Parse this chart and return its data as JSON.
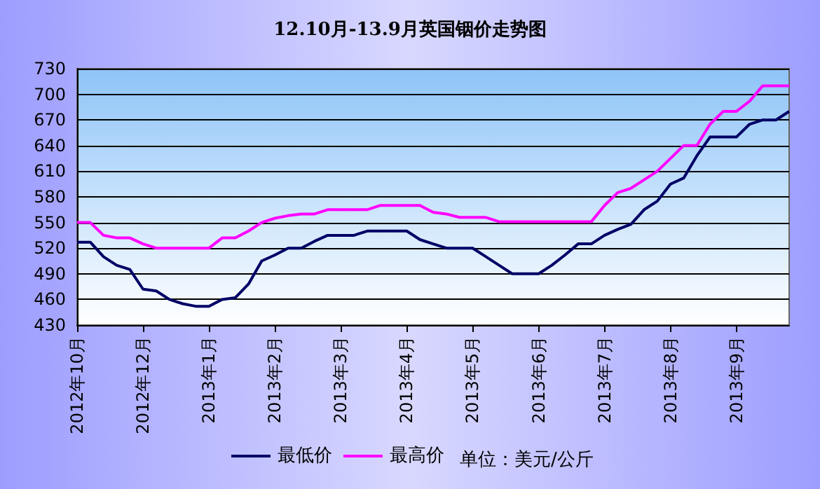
{
  "chart_data": {
    "type": "line",
    "title": "12.10月-13.9月英国铟价走势图",
    "categories": [
      "2012年10月",
      null,
      null,
      null,
      null,
      "2012年12月",
      null,
      null,
      null,
      null,
      "2013年1月",
      null,
      null,
      null,
      null,
      "2013年2月",
      null,
      null,
      null,
      null,
      "2013年3月",
      null,
      null,
      null,
      null,
      "2013年4月",
      null,
      null,
      null,
      null,
      "2013年5月",
      null,
      null,
      null,
      null,
      "2013年6月",
      null,
      null,
      null,
      null,
      "2013年7月",
      null,
      null,
      null,
      null,
      "2013年8月",
      null,
      null,
      null,
      null,
      "2013年9月",
      null,
      null,
      null,
      null
    ],
    "series": [
      {
        "name": "最低价",
        "color": "#000066",
        "values": [
          527,
          527,
          510,
          500,
          495,
          472,
          470,
          460,
          455,
          452,
          452,
          460,
          462,
          478,
          505,
          512,
          520,
          520,
          528,
          535,
          535,
          535,
          540,
          540,
          540,
          540,
          530,
          525,
          520,
          520,
          520,
          510,
          500,
          490,
          490,
          490,
          500,
          512,
          525,
          525,
          535,
          542,
          548,
          565,
          575,
          595,
          602,
          628,
          650,
          650,
          650,
          665,
          670,
          670,
          680
        ]
      },
      {
        "name": "最高价",
        "color": "#ff00ff",
        "values": [
          550,
          550,
          535,
          532,
          532,
          525,
          520,
          520,
          520,
          520,
          520,
          532,
          532,
          540,
          550,
          555,
          558,
          560,
          560,
          565,
          565,
          565,
          565,
          570,
          570,
          570,
          570,
          562,
          560,
          556,
          556,
          556,
          551,
          551,
          551,
          551,
          551,
          551,
          551,
          551,
          570,
          585,
          590,
          600,
          610,
          625,
          640,
          640,
          665,
          680,
          680,
          692,
          710,
          710,
          710
        ]
      }
    ],
    "annotations": [
      "单位：美元/公斤"
    ],
    "ylim": [
      430,
      730
    ],
    "yticks": [
      430,
      460,
      490,
      520,
      550,
      580,
      610,
      640,
      670,
      700,
      730
    ],
    "grid": "y",
    "legend": "bottom",
    "marker": "none",
    "line_style": "solid"
  }
}
